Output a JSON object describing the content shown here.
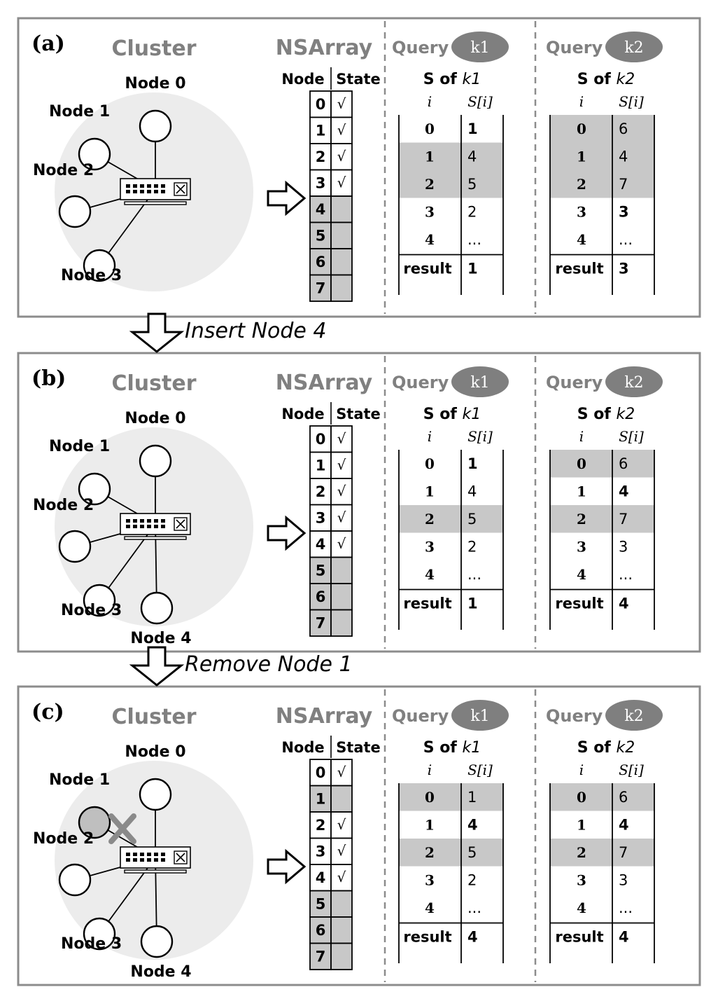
{
  "colors": {
    "frame": "#8c8c8c",
    "cluster_bg": "#ececec",
    "shade": "#c8c8c8",
    "pill": "#7f7f7f",
    "title_gray": "#808080",
    "failed_node": "#bfbfbf"
  },
  "transitions": [
    {
      "label": "Insert Node 4"
    },
    {
      "label": "Remove Node 1"
    }
  ],
  "panels": [
    {
      "tag": "(a)",
      "cluster_title": "Cluster",
      "nsarray_title": "NSArray",
      "nodes": [
        "Node 0",
        "Node 1",
        "Node 2",
        "Node 3"
      ],
      "failed_node": null,
      "table_headers": [
        "Node",
        "State"
      ],
      "ns_rows": [
        {
          "node": "0",
          "state": "√",
          "active": true
        },
        {
          "node": "1",
          "state": "√",
          "active": true
        },
        {
          "node": "2",
          "state": "√",
          "active": true
        },
        {
          "node": "3",
          "state": "√",
          "active": true
        },
        {
          "node": "4",
          "state": "",
          "active": false
        },
        {
          "node": "5",
          "state": "",
          "active": false
        },
        {
          "node": "6",
          "state": "",
          "active": false
        },
        {
          "node": "7",
          "state": "",
          "active": false
        }
      ],
      "queries": [
        {
          "query_label": "Query",
          "key": "k1",
          "s_title": "S of ",
          "s_key": "k1",
          "col_i": "i",
          "col_s": "S[i]",
          "rows": [
            {
              "i": "0",
              "s": "1",
              "bold": true,
              "shaded": false
            },
            {
              "i": "1",
              "s": "4",
              "bold": false,
              "shaded": true
            },
            {
              "i": "2",
              "s": "5",
              "bold": false,
              "shaded": true
            },
            {
              "i": "3",
              "s": "2",
              "bold": false,
              "shaded": false
            },
            {
              "i": "4",
              "s": "...",
              "bold": false,
              "shaded": false
            }
          ],
          "result_label": "result",
          "result": "1"
        },
        {
          "query_label": "Query",
          "key": "k2",
          "s_title": "S of ",
          "s_key": "k2",
          "col_i": "i",
          "col_s": "S[i]",
          "rows": [
            {
              "i": "0",
              "s": "6",
              "bold": false,
              "shaded": true
            },
            {
              "i": "1",
              "s": "4",
              "bold": false,
              "shaded": true
            },
            {
              "i": "2",
              "s": "7",
              "bold": false,
              "shaded": true
            },
            {
              "i": "3",
              "s": "3",
              "bold": true,
              "shaded": false
            },
            {
              "i": "4",
              "s": "...",
              "bold": false,
              "shaded": false
            }
          ],
          "result_label": "result",
          "result": "3"
        }
      ]
    },
    {
      "tag": "(b)",
      "cluster_title": "Cluster",
      "nsarray_title": "NSArray",
      "nodes": [
        "Node 0",
        "Node 1",
        "Node 2",
        "Node 3",
        "Node 4"
      ],
      "failed_node": null,
      "table_headers": [
        "Node",
        "State"
      ],
      "ns_rows": [
        {
          "node": "0",
          "state": "√",
          "active": true
        },
        {
          "node": "1",
          "state": "√",
          "active": true
        },
        {
          "node": "2",
          "state": "√",
          "active": true
        },
        {
          "node": "3",
          "state": "√",
          "active": true
        },
        {
          "node": "4",
          "state": "√",
          "active": true
        },
        {
          "node": "5",
          "state": "",
          "active": false
        },
        {
          "node": "6",
          "state": "",
          "active": false
        },
        {
          "node": "7",
          "state": "",
          "active": false
        }
      ],
      "queries": [
        {
          "query_label": "Query",
          "key": "k1",
          "s_title": "S of ",
          "s_key": "k1",
          "col_i": "i",
          "col_s": "S[i]",
          "rows": [
            {
              "i": "0",
              "s": "1",
              "bold": true,
              "shaded": false
            },
            {
              "i": "1",
              "s": "4",
              "bold": false,
              "shaded": false
            },
            {
              "i": "2",
              "s": "5",
              "bold": false,
              "shaded": true
            },
            {
              "i": "3",
              "s": "2",
              "bold": false,
              "shaded": false
            },
            {
              "i": "4",
              "s": "...",
              "bold": false,
              "shaded": false
            }
          ],
          "result_label": "result",
          "result": "1"
        },
        {
          "query_label": "Query",
          "key": "k2",
          "s_title": "S of ",
          "s_key": "k2",
          "col_i": "i",
          "col_s": "S[i]",
          "rows": [
            {
              "i": "0",
              "s": "6",
              "bold": false,
              "shaded": true
            },
            {
              "i": "1",
              "s": "4",
              "bold": true,
              "shaded": false
            },
            {
              "i": "2",
              "s": "7",
              "bold": false,
              "shaded": true
            },
            {
              "i": "3",
              "s": "3",
              "bold": false,
              "shaded": false
            },
            {
              "i": "4",
              "s": "...",
              "bold": false,
              "shaded": false
            }
          ],
          "result_label": "result",
          "result": "4"
        }
      ]
    },
    {
      "tag": "(c)",
      "cluster_title": "Cluster",
      "nsarray_title": "NSArray",
      "nodes": [
        "Node 0",
        "Node 1",
        "Node 2",
        "Node 3",
        "Node 4"
      ],
      "failed_node": "Node 1",
      "table_headers": [
        "Node",
        "State"
      ],
      "ns_rows": [
        {
          "node": "0",
          "state": "√",
          "active": true
        },
        {
          "node": "1",
          "state": "",
          "active": false
        },
        {
          "node": "2",
          "state": "√",
          "active": true
        },
        {
          "node": "3",
          "state": "√",
          "active": true
        },
        {
          "node": "4",
          "state": "√",
          "active": true
        },
        {
          "node": "5",
          "state": "",
          "active": false
        },
        {
          "node": "6",
          "state": "",
          "active": false
        },
        {
          "node": "7",
          "state": "",
          "active": false
        }
      ],
      "queries": [
        {
          "query_label": "Query",
          "key": "k1",
          "s_title": "S of ",
          "s_key": "k1",
          "col_i": "i",
          "col_s": "S[i]",
          "rows": [
            {
              "i": "0",
              "s": "1",
              "bold": false,
              "shaded": true
            },
            {
              "i": "1",
              "s": "4",
              "bold": true,
              "shaded": false
            },
            {
              "i": "2",
              "s": "5",
              "bold": false,
              "shaded": true
            },
            {
              "i": "3",
              "s": "2",
              "bold": false,
              "shaded": false
            },
            {
              "i": "4",
              "s": "...",
              "bold": false,
              "shaded": false
            }
          ],
          "result_label": "result",
          "result": "4"
        },
        {
          "query_label": "Query",
          "key": "k2",
          "s_title": "S of ",
          "s_key": "k2",
          "col_i": "i",
          "col_s": "S[i]",
          "rows": [
            {
              "i": "0",
              "s": "6",
              "bold": false,
              "shaded": true
            },
            {
              "i": "1",
              "s": "4",
              "bold": true,
              "shaded": false
            },
            {
              "i": "2",
              "s": "7",
              "bold": false,
              "shaded": true
            },
            {
              "i": "3",
              "s": "3",
              "bold": false,
              "shaded": false
            },
            {
              "i": "4",
              "s": "...",
              "bold": false,
              "shaded": false
            }
          ],
          "result_label": "result",
          "result": "4"
        }
      ]
    }
  ]
}
